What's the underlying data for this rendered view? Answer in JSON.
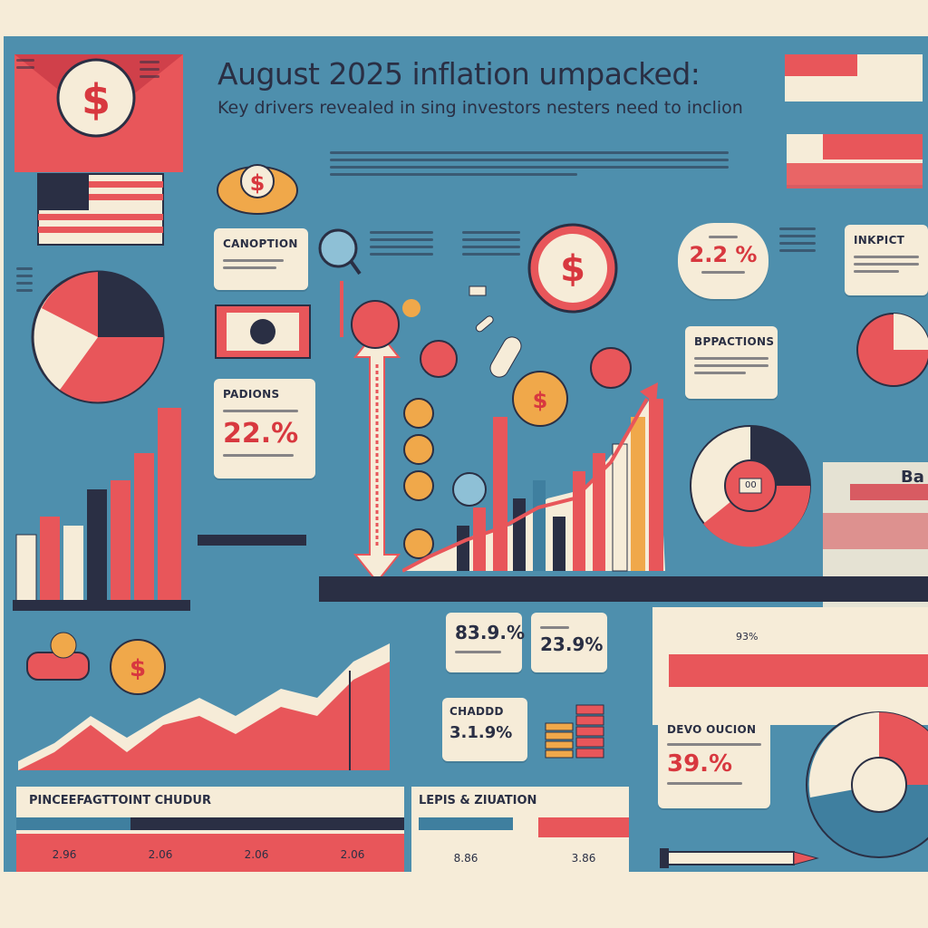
{
  "header": {
    "title": "August 2025 inflation umpacked:",
    "subtitle": "Key drivers revealed in sing investors nesters need to inclion"
  },
  "cards": {
    "canoption": {
      "heading": "CANOPTION"
    },
    "padions": {
      "heading": "PADIONS",
      "value": "22.%"
    },
    "stat_top": {
      "value": "2.2 %"
    },
    "inkpict": {
      "heading": "INKPICT"
    },
    "bppactions": {
      "heading": "BPPACTIONS"
    },
    "stat_a": {
      "value": "83.9.%"
    },
    "stat_b": {
      "value": "23.9%"
    },
    "chaddd": {
      "heading": "CHADDD",
      "value": "3.1.9%"
    },
    "devo": {
      "heading": "DEVO OUCION",
      "value": "39.%"
    }
  },
  "tables": {
    "left": {
      "heading": "PINCEEFAGTTOINT CHUDUR",
      "values": [
        "2.96",
        "2.06",
        "2.06",
        "2.06"
      ]
    },
    "right": {
      "heading": "LEPIS & ZIUATION",
      "values": [
        "8.86",
        "3.86"
      ]
    }
  },
  "misc": {
    "scale_label": "93%",
    "corner_label": "Ba",
    "marker_label": "00"
  },
  "colors": {
    "background": "#4e8fad",
    "cream": "#f6ecd8",
    "red": "#e8565a",
    "navy": "#2a2f44",
    "gold": "#f0a84a",
    "teal": "#3f7f9f"
  }
}
